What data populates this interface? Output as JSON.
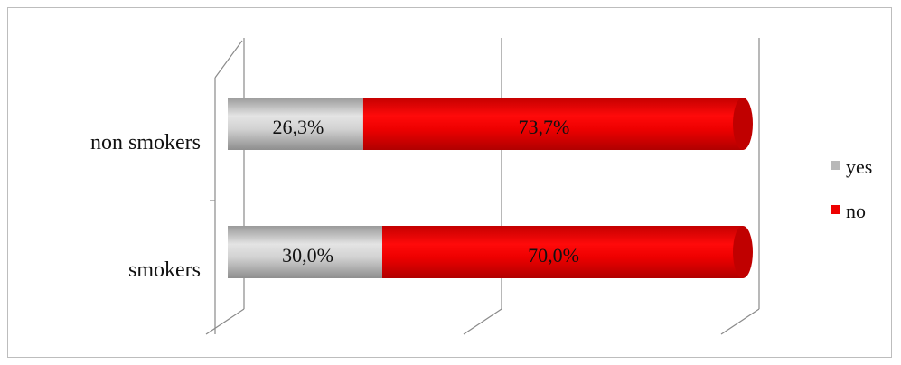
{
  "chart_data": {
    "type": "bar",
    "orientation": "horizontal",
    "stacked": "percent",
    "categories": [
      "non smokers",
      "smokers"
    ],
    "series": [
      {
        "name": "yes",
        "values": [
          26.3,
          30.0
        ],
        "labels": [
          "26,3%",
          "30,0%"
        ],
        "color": "#c8c8c8"
      },
      {
        "name": "no",
        "values": [
          73.7,
          70.0
        ],
        "labels": [
          "73,7%",
          "70,0%"
        ],
        "color": "#ee0000"
      }
    ],
    "xlim": [
      0,
      100
    ],
    "grid": true,
    "legend": "right",
    "title": "",
    "xlabel": "",
    "ylabel": ""
  }
}
